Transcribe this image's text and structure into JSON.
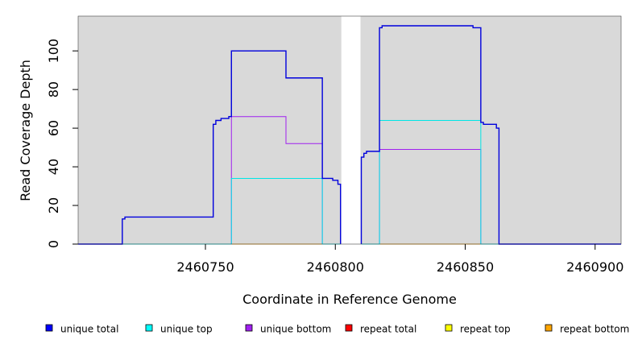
{
  "chart_data": {
    "type": "line",
    "title": "",
    "xlabel": "Coordinate in Reference Genome",
    "ylabel": "Read Coverage Depth",
    "xlim": [
      2460701,
      2460910
    ],
    "ylim": [
      0,
      118
    ],
    "x_ticks": [
      2460750,
      2460800,
      2460850,
      2460900
    ],
    "x_tick_labels": [
      "2460750",
      "2460800",
      "2460850",
      "2460900"
    ],
    "y_ticks": [
      0,
      20,
      40,
      60,
      80,
      100
    ],
    "y_tick_labels": [
      "0",
      "20",
      "40",
      "60",
      "80",
      "100"
    ],
    "grid": false,
    "background": "#d9d9d9",
    "gap": [
      2460802,
      2460810
    ],
    "gap_color": "#ffffff",
    "legend_position": "bottom",
    "series": [
      {
        "name": "unique total",
        "color": "#0000dd",
        "steps": [
          [
            2460701,
            0
          ],
          [
            2460718,
            0
          ],
          [
            2460718,
            13
          ],
          [
            2460719,
            13
          ],
          [
            2460719,
            14
          ],
          [
            2460753,
            14
          ],
          [
            2460753,
            62
          ],
          [
            2460754,
            62
          ],
          [
            2460754,
            64
          ],
          [
            2460756,
            64
          ],
          [
            2460756,
            65
          ],
          [
            2460759,
            65
          ],
          [
            2460759,
            66
          ],
          [
            2460760,
            66
          ],
          [
            2460760,
            100
          ],
          [
            2460781,
            100
          ],
          [
            2460781,
            86
          ],
          [
            2460795,
            86
          ],
          [
            2460795,
            34
          ],
          [
            2460799,
            34
          ],
          [
            2460799,
            33
          ],
          [
            2460801,
            33
          ],
          [
            2460801,
            31
          ],
          [
            2460802,
            31
          ],
          [
            2460802,
            0
          ]
        ]
      },
      {
        "name": "unique total",
        "color": "#0000dd",
        "steps": [
          [
            2460810,
            0
          ],
          [
            2460810,
            45
          ],
          [
            2460811,
            45
          ],
          [
            2460811,
            47
          ],
          [
            2460812,
            47
          ],
          [
            2460812,
            48
          ],
          [
            2460817,
            48
          ],
          [
            2460817,
            112
          ],
          [
            2460818,
            112
          ],
          [
            2460818,
            113
          ],
          [
            2460853,
            113
          ],
          [
            2460853,
            112
          ],
          [
            2460856,
            112
          ],
          [
            2460856,
            63
          ],
          [
            2460857,
            63
          ],
          [
            2460857,
            62
          ],
          [
            2460862,
            62
          ],
          [
            2460862,
            60
          ],
          [
            2460863,
            60
          ],
          [
            2460863,
            0
          ],
          [
            2460910,
            0
          ]
        ]
      },
      {
        "name": "unique top",
        "color": "#00e5e5",
        "steps": [
          [
            2460701,
            0
          ],
          [
            2460760,
            0
          ],
          [
            2460760,
            34
          ],
          [
            2460795,
            34
          ],
          [
            2460795,
            0
          ],
          [
            2460802,
            0
          ]
        ]
      },
      {
        "name": "unique top",
        "color": "#00e5e5",
        "steps": [
          [
            2460810,
            0
          ],
          [
            2460817,
            0
          ],
          [
            2460817,
            64
          ],
          [
            2460856,
            64
          ],
          [
            2460856,
            0
          ],
          [
            2460910,
            0
          ]
        ]
      },
      {
        "name": "unique bottom",
        "color": "#a020f0",
        "steps": [
          [
            2460701,
            0
          ],
          [
            2460760,
            0
          ],
          [
            2460760,
            66
          ],
          [
            2460781,
            66
          ],
          [
            2460781,
            52
          ],
          [
            2460795,
            52
          ],
          [
            2460795,
            0
          ],
          [
            2460802,
            0
          ]
        ]
      },
      {
        "name": "unique bottom",
        "color": "#a020f0",
        "steps": [
          [
            2460810,
            0
          ],
          [
            2460817,
            0
          ],
          [
            2460817,
            49
          ],
          [
            2460856,
            49
          ],
          [
            2460856,
            0
          ],
          [
            2460910,
            0
          ]
        ]
      },
      {
        "name": "repeat top",
        "color": "#ffa500",
        "steps": [
          [
            2460760,
            0
          ],
          [
            2460795,
            0
          ]
        ]
      },
      {
        "name": "repeat top",
        "color": "#ffa500",
        "steps": [
          [
            2460817,
            0
          ],
          [
            2460856,
            0
          ]
        ]
      }
    ],
    "legend": [
      {
        "label": "unique total",
        "color": "#0000ff"
      },
      {
        "label": "unique top",
        "color": "#00ffff"
      },
      {
        "label": "unique bottom",
        "color": "#a020f0"
      },
      {
        "label": "repeat total",
        "color": "#ff0000"
      },
      {
        "label": "repeat top",
        "color": "#ffff00"
      },
      {
        "label": "repeat bottom",
        "color": "#ffa500"
      }
    ]
  }
}
